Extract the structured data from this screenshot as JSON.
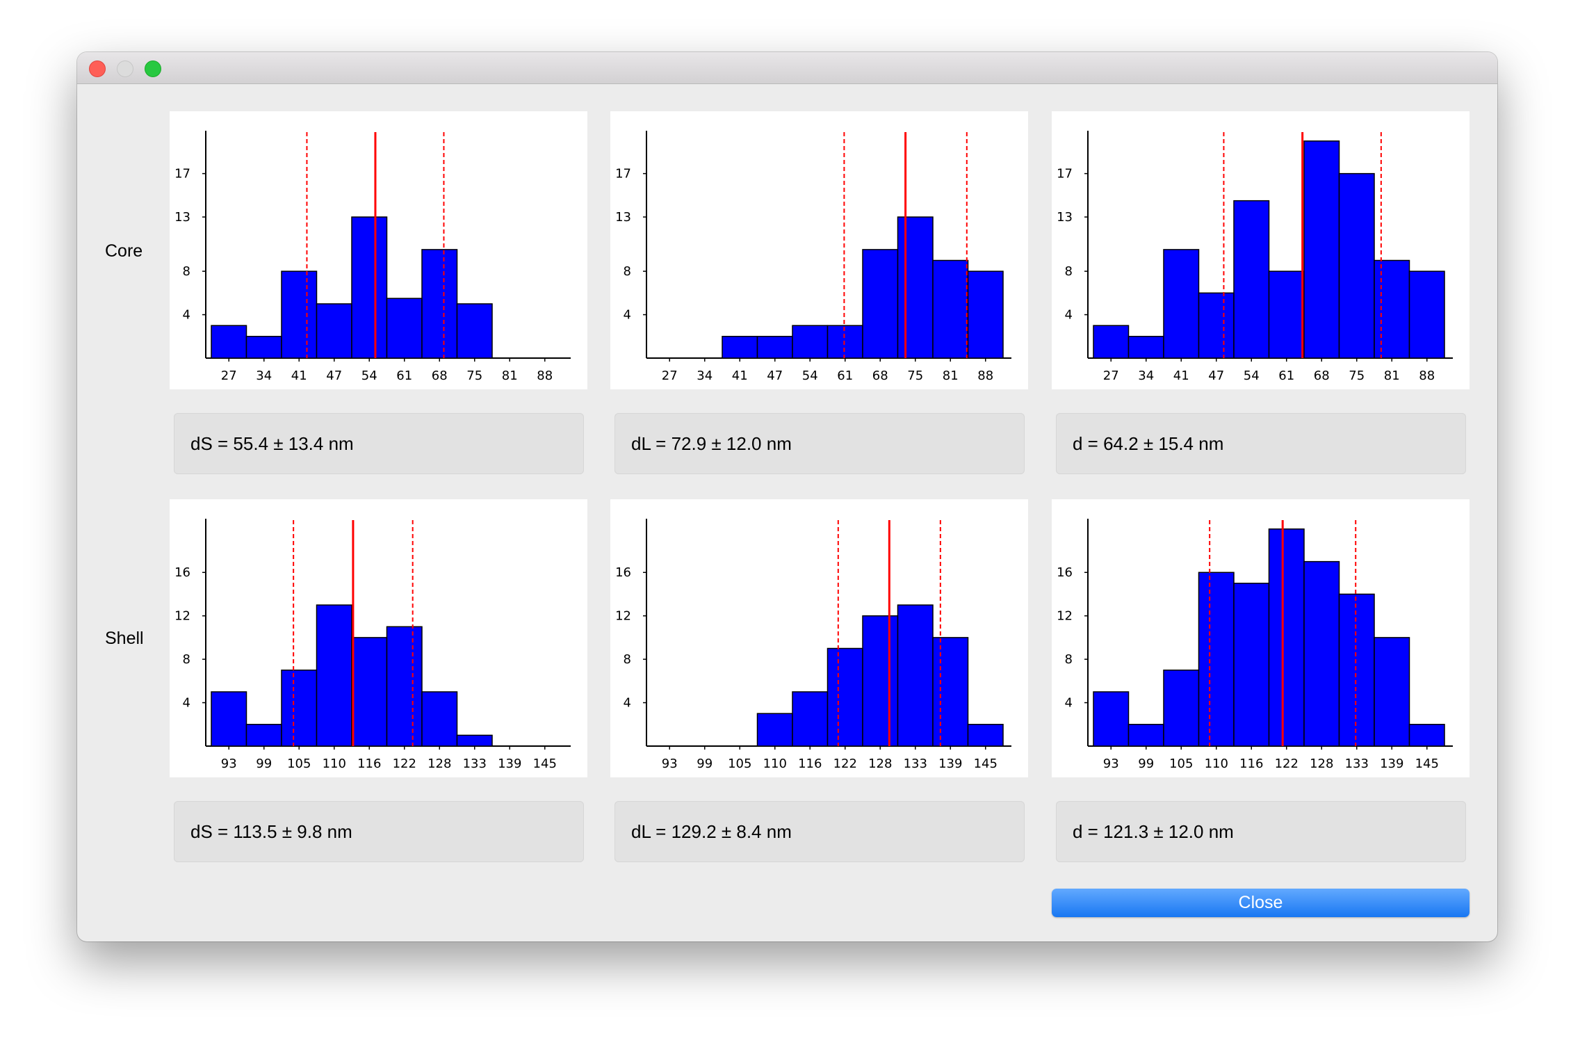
{
  "dialog": {
    "row_labels": [
      "Core",
      "Shell"
    ],
    "close_label": "Close",
    "accent_color": "#1a7cf5",
    "bar_color": "#0000ff",
    "line_color": "#ff0000"
  },
  "stats": {
    "core": [
      "dS = 55.4 ± 13.4 nm",
      "dL = 72.9 ± 12.0 nm",
      "d = 64.2 ± 15.4 nm"
    ],
    "shell": [
      "dS = 113.5 ± 9.8 nm",
      "dL = 129.2 ± 8.4 nm",
      "d = 121.3 ± 12.0 nm"
    ]
  },
  "chart_data": [
    {
      "type": "bar",
      "panel": "core-dS",
      "categories": [
        "27",
        "34",
        "41",
        "47",
        "54",
        "61",
        "68",
        "75",
        "81",
        "88"
      ],
      "y_ticks": [
        4,
        8,
        13,
        17
      ],
      "ylim": [
        0,
        20.5
      ],
      "values": [
        3,
        2,
        8,
        5,
        13,
        5.5,
        10,
        5,
        0,
        0
      ],
      "mean": 55.4,
      "mean_minus_sd": 42.0,
      "mean_plus_sd": 68.8,
      "xlim": [
        23.3,
        92.0
      ]
    },
    {
      "type": "bar",
      "panel": "core-dL",
      "categories": [
        "27",
        "34",
        "41",
        "47",
        "54",
        "61",
        "68",
        "75",
        "81",
        "88"
      ],
      "y_ticks": [
        4,
        8,
        13,
        17
      ],
      "ylim": [
        0,
        20.5
      ],
      "values": [
        0,
        0,
        2,
        2,
        3,
        3,
        10,
        13,
        9,
        8
      ],
      "mean": 72.9,
      "mean_minus_sd": 60.9,
      "mean_plus_sd": 84.9,
      "xlim": [
        23.3,
        92.0
      ]
    },
    {
      "type": "bar",
      "panel": "core-d",
      "categories": [
        "27",
        "34",
        "41",
        "47",
        "54",
        "61",
        "68",
        "75",
        "81",
        "88"
      ],
      "y_ticks": [
        4,
        8,
        13,
        17
      ],
      "ylim": [
        0,
        20.5
      ],
      "values": [
        3,
        2,
        10,
        6,
        14.5,
        8,
        20,
        17,
        9,
        8
      ],
      "mean": 64.2,
      "mean_minus_sd": 48.8,
      "mean_plus_sd": 79.6,
      "xlim": [
        23.3,
        92.0
      ]
    },
    {
      "type": "bar",
      "panel": "shell-dS",
      "categories": [
        "93",
        "99",
        "105",
        "110",
        "116",
        "122",
        "128",
        "133",
        "139",
        "145"
      ],
      "y_ticks": [
        4,
        8,
        12,
        16
      ],
      "ylim": [
        0,
        20.5
      ],
      "values": [
        5,
        2,
        7,
        13,
        10,
        11,
        5,
        1,
        0,
        0
      ],
      "mean": 113.5,
      "mean_minus_sd": 103.7,
      "mean_plus_sd": 123.3,
      "xlim": [
        90.2,
        147.9
      ]
    },
    {
      "type": "bar",
      "panel": "shell-dL",
      "categories": [
        "93",
        "99",
        "105",
        "110",
        "116",
        "122",
        "128",
        "133",
        "139",
        "145"
      ],
      "y_ticks": [
        4,
        8,
        12,
        16
      ],
      "ylim": [
        0,
        20.5
      ],
      "values": [
        0,
        0,
        0,
        3,
        5,
        9,
        12,
        13,
        10,
        2
      ],
      "mean": 129.2,
      "mean_minus_sd": 120.8,
      "mean_plus_sd": 137.6,
      "xlim": [
        90.2,
        147.9
      ]
    },
    {
      "type": "bar",
      "panel": "shell-d",
      "categories": [
        "93",
        "99",
        "105",
        "110",
        "116",
        "122",
        "128",
        "133",
        "139",
        "145"
      ],
      "y_ticks": [
        4,
        8,
        12,
        16
      ],
      "ylim": [
        0,
        20.5
      ],
      "values": [
        5,
        2,
        7,
        16,
        15,
        20,
        17,
        14,
        10,
        2
      ],
      "mean": 121.3,
      "mean_minus_sd": 109.3,
      "mean_plus_sd": 133.3,
      "xlim": [
        90.2,
        147.9
      ]
    }
  ]
}
